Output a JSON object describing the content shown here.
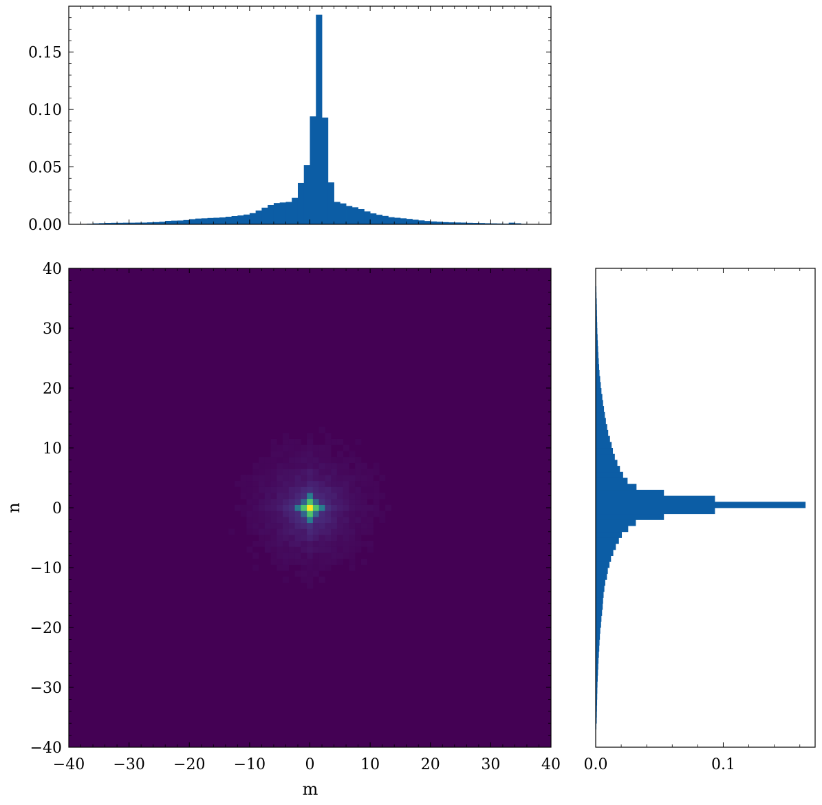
{
  "chart_data": [
    {
      "panel": "top-marginal",
      "type": "bar",
      "bar_color": "#0c5da5",
      "xlim": [
        -40,
        40
      ],
      "ylim": [
        0,
        0.19
      ],
      "yticks": [
        0.0,
        0.05,
        0.1,
        0.15
      ],
      "ytick_labels": [
        "0.00",
        "0.05",
        "0.10",
        "0.15"
      ],
      "bin_width": 1,
      "bin_centers": [
        -37.5,
        -36.5,
        -35.5,
        -34.5,
        -33.5,
        -32.5,
        -31.5,
        -30.5,
        -29.5,
        -28.5,
        -27.5,
        -26.5,
        -25.5,
        -24.5,
        -23.5,
        -22.5,
        -21.5,
        -20.5,
        -19.5,
        -18.5,
        -17.5,
        -16.5,
        -15.5,
        -14.5,
        -13.5,
        -12.5,
        -11.5,
        -10.5,
        -9.5,
        -8.5,
        -7.5,
        -6.5,
        -5.5,
        -4.5,
        -3.5,
        -2.5,
        -1.5,
        -0.5,
        0.5,
        1.5,
        2.5,
        3.5,
        4.5,
        5.5,
        6.5,
        7.5,
        8.5,
        9.5,
        10.5,
        11.5,
        12.5,
        13.5,
        14.5,
        15.5,
        16.5,
        17.5,
        18.5,
        19.5,
        20.5,
        21.5,
        22.5,
        23.5,
        24.5,
        25.5,
        26.5,
        27.5,
        28.5,
        29.5,
        30.5,
        31.5,
        32.5,
        33.5,
        34.5,
        35.5,
        36.5
      ],
      "values": [
        0.0003,
        0.0005,
        0.0008,
        0.001,
        0.0012,
        0.0013,
        0.0013,
        0.0014,
        0.0014,
        0.0015,
        0.0015,
        0.0017,
        0.0019,
        0.0022,
        0.003,
        0.0032,
        0.0033,
        0.0037,
        0.0045,
        0.005,
        0.0052,
        0.0055,
        0.0057,
        0.006,
        0.0066,
        0.0072,
        0.0077,
        0.0085,
        0.0097,
        0.012,
        0.0145,
        0.0168,
        0.0185,
        0.019,
        0.0195,
        0.023,
        0.036,
        0.0515,
        0.094,
        0.1825,
        0.093,
        0.0365,
        0.0195,
        0.0182,
        0.016,
        0.0148,
        0.0132,
        0.0112,
        0.0095,
        0.0083,
        0.0073,
        0.0062,
        0.0057,
        0.0052,
        0.0047,
        0.004,
        0.0034,
        0.0029,
        0.0025,
        0.0022,
        0.0019,
        0.0017,
        0.0016,
        0.0015,
        0.0013,
        0.0012,
        0.0011,
        0.0009,
        0.0008,
        0.0007,
        0.0006,
        0.0014,
        0.0009,
        0.0004,
        0.0002
      ]
    },
    {
      "panel": "heatmap",
      "type": "heatmap",
      "colormap": "viridis",
      "background_color": "#440154",
      "peak_color": "#fde725",
      "xlabel": "m",
      "ylabel": "n",
      "xlim": [
        -40,
        40
      ],
      "ylim": [
        -40,
        40
      ],
      "xticks": [
        -40,
        -30,
        -20,
        -10,
        0,
        10,
        20,
        30,
        40
      ],
      "xtick_labels": [
        "−40",
        "−30",
        "−20",
        "−10",
        "0",
        "10",
        "20",
        "30",
        "40"
      ],
      "yticks": [
        -40,
        -30,
        -20,
        -10,
        0,
        10,
        20,
        30,
        40
      ],
      "ytick_labels": [
        "−40",
        "−30",
        "−20",
        "−10",
        "0",
        "10",
        "20",
        "30",
        "40"
      ],
      "bin_width": 1,
      "peak": {
        "m": 0,
        "n": 0
      }
    },
    {
      "panel": "right-marginal",
      "type": "bar",
      "orientation": "horizontal",
      "bar_color": "#0c5da5",
      "xlim": [
        0,
        0.172
      ],
      "ylim": [
        -40,
        40
      ],
      "xticks": [
        0.0,
        0.1
      ],
      "xtick_labels": [
        "0.0",
        "0.1"
      ],
      "bin_width": 1,
      "bin_centers": [
        -36.5,
        -35.5,
        -34.5,
        -33.5,
        -32.5,
        -31.5,
        -30.5,
        -29.5,
        -28.5,
        -27.5,
        -26.5,
        -25.5,
        -24.5,
        -23.5,
        -22.5,
        -21.5,
        -20.5,
        -19.5,
        -18.5,
        -17.5,
        -16.5,
        -15.5,
        -14.5,
        -13.5,
        -12.5,
        -11.5,
        -10.5,
        -9.5,
        -8.5,
        -7.5,
        -6.5,
        -5.5,
        -4.5,
        -3.5,
        -2.5,
        -1.5,
        -0.5,
        0.5,
        1.5,
        2.5,
        3.5,
        4.5,
        5.5,
        6.5,
        7.5,
        8.5,
        9.5,
        10.5,
        11.5,
        12.5,
        13.5,
        14.5,
        15.5,
        16.5,
        17.5,
        18.5,
        19.5,
        20.5,
        21.5,
        22.5,
        23.5,
        24.5,
        25.5,
        26.5,
        27.5,
        28.5,
        29.5,
        30.5,
        31.5,
        32.5,
        33.5,
        34.5,
        35.5,
        36.5
      ],
      "values": [
        0.0005,
        0.0008,
        0.0009,
        0.001,
        0.0011,
        0.0012,
        0.0013,
        0.0014,
        0.0016,
        0.0018,
        0.002,
        0.0022,
        0.0025,
        0.0028,
        0.003,
        0.0033,
        0.0036,
        0.0042,
        0.0045,
        0.005,
        0.0055,
        0.0058,
        0.0062,
        0.0068,
        0.0075,
        0.0088,
        0.0095,
        0.0108,
        0.012,
        0.0138,
        0.0158,
        0.0182,
        0.0205,
        0.0255,
        0.0315,
        0.0535,
        0.0935,
        0.1645,
        0.0935,
        0.0535,
        0.032,
        0.025,
        0.0215,
        0.019,
        0.017,
        0.015,
        0.0135,
        0.0125,
        0.0112,
        0.0098,
        0.009,
        0.008,
        0.0072,
        0.0065,
        0.0058,
        0.0052,
        0.0045,
        0.004,
        0.0035,
        0.003,
        0.0027,
        0.0024,
        0.0021,
        0.0019,
        0.0017,
        0.0015,
        0.0013,
        0.0012,
        0.0011,
        0.001,
        0.0009,
        0.0008,
        0.0006,
        0.0005
      ]
    }
  ]
}
